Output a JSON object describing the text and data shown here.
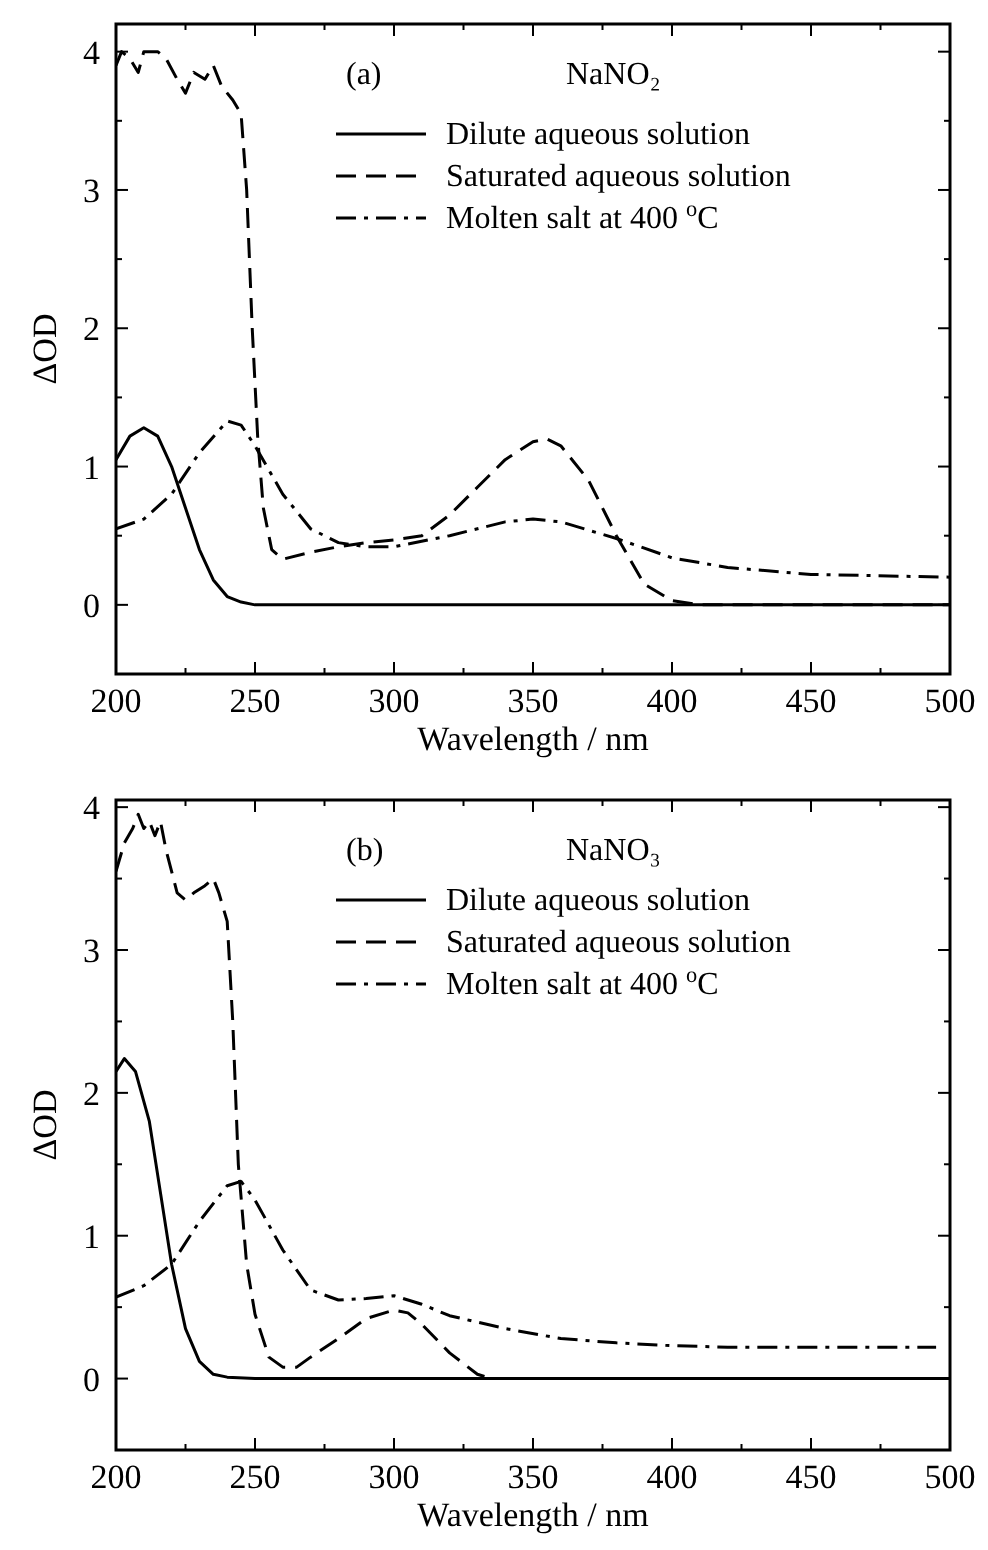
{
  "chart_data": [
    {
      "type": "line",
      "xlabel": "Wavelength / nm",
      "ylabel": "ΔOD",
      "annotations": [
        "(a)",
        "NaNO₂"
      ],
      "xlim": [
        200,
        500
      ],
      "ylim": [
        -0.5,
        4.2
      ],
      "xticks": [
        200,
        {
          "value": 225,
          "label": null
        },
        250,
        {
          "value": 275,
          "label": null
        },
        300,
        {
          "value": 325,
          "label": null
        },
        350,
        {
          "value": 375,
          "label": null
        },
        400,
        {
          "value": 425,
          "label": null
        },
        450,
        {
          "value": 475,
          "label": null
        },
        500
      ],
      "yticks": [
        {
          "value": -0.5,
          "label": null
        },
        0,
        {
          "value": 0.5,
          "label": null
        },
        1,
        {
          "value": 1.5,
          "label": null
        },
        2,
        {
          "value": 2.5,
          "label": null
        },
        3,
        {
          "value": 3.5,
          "label": null
        },
        4
      ],
      "legend": "top right",
      "grid": false,
      "series": [
        {
          "name": "Dilute aqueous solution",
          "color": "#000000",
          "line_style": "solid",
          "x": [
            200,
            205,
            210,
            215,
            220,
            225,
            230,
            235,
            240,
            245,
            250,
            500
          ],
          "values": [
            1.05,
            1.22,
            1.28,
            1.22,
            1.0,
            0.7,
            0.4,
            0.18,
            0.06,
            0.02,
            0,
            0
          ]
        },
        {
          "name": "Saturated aqueous solution",
          "color": "#000000",
          "line_style": "dashed",
          "x": [
            200,
            202,
            205,
            208,
            210,
            215,
            218,
            222,
            225,
            228,
            232,
            235,
            238,
            242,
            245,
            247,
            249,
            251,
            253,
            256,
            260,
            270,
            280,
            290,
            300,
            310,
            320,
            330,
            340,
            350,
            355,
            360,
            370,
            380,
            390,
            400,
            410,
            500
          ],
          "values": [
            3.9,
            4.0,
            3.95,
            3.85,
            4.0,
            4.0,
            3.95,
            3.8,
            3.7,
            3.85,
            3.8,
            3.9,
            3.75,
            3.65,
            3.55,
            3.0,
            2.0,
            1.2,
            0.7,
            0.4,
            0.33,
            0.38,
            0.42,
            0.45,
            0.47,
            0.5,
            0.65,
            0.85,
            1.05,
            1.18,
            1.2,
            1.15,
            0.9,
            0.5,
            0.15,
            0.03,
            0,
            0
          ]
        },
        {
          "name": "Molten salt at 400 $^{o}$C",
          "color": "#000000",
          "line_style": "dashdot",
          "x": [
            200,
            210,
            220,
            230,
            240,
            245,
            250,
            260,
            270,
            280,
            290,
            300,
            320,
            340,
            350,
            360,
            380,
            400,
            420,
            450,
            500
          ],
          "values": [
            0.55,
            0.62,
            0.8,
            1.1,
            1.33,
            1.3,
            1.15,
            0.8,
            0.55,
            0.45,
            0.42,
            0.42,
            0.5,
            0.6,
            0.62,
            0.6,
            0.48,
            0.34,
            0.27,
            0.22,
            0.2
          ]
        }
      ]
    },
    {
      "type": "line",
      "xlabel": "Wavelength / nm",
      "ylabel": "ΔOD",
      "annotations": [
        "(b)",
        "NaNO₃"
      ],
      "xlim": [
        200,
        500
      ],
      "ylim": [
        -0.5,
        4.05
      ],
      "xticks": [
        200,
        {
          "value": 225,
          "label": null
        },
        250,
        {
          "value": 275,
          "label": null
        },
        300,
        {
          "value": 325,
          "label": null
        },
        350,
        {
          "value": 375,
          "label": null
        },
        400,
        {
          "value": 425,
          "label": null
        },
        450,
        {
          "value": 475,
          "label": null
        },
        500
      ],
      "yticks": [
        {
          "value": -0.5,
          "label": null
        },
        0,
        {
          "value": 0.5,
          "label": null
        },
        1,
        {
          "value": 1.5,
          "label": null
        },
        2,
        {
          "value": 2.5,
          "label": null
        },
        3,
        {
          "value": 3.5,
          "label": null
        },
        4
      ],
      "legend": "top right",
      "grid": false,
      "series": [
        {
          "name": "Dilute aqueous solution",
          "color": "#000000",
          "line_style": "solid",
          "x": [
            200,
            203,
            207,
            212,
            216,
            220,
            225,
            230,
            235,
            240,
            250,
            500
          ],
          "values": [
            2.15,
            2.24,
            2.15,
            1.8,
            1.3,
            0.8,
            0.35,
            0.12,
            0.03,
            0.01,
            0,
            0
          ]
        },
        {
          "name": "Saturated aqueous solution",
          "color": "#000000",
          "line_style": "dashed",
          "x": [
            200,
            203,
            206,
            208,
            210,
            212,
            214,
            216,
            218,
            220,
            222,
            225,
            228,
            232,
            235,
            237,
            240,
            242,
            244,
            247,
            250,
            255,
            260,
            265,
            270,
            280,
            290,
            300,
            305,
            310,
            320,
            330,
            335,
            500
          ],
          "values": [
            3.55,
            3.75,
            3.85,
            3.95,
            3.85,
            3.9,
            3.8,
            3.9,
            3.7,
            3.55,
            3.4,
            3.35,
            3.4,
            3.45,
            3.5,
            3.4,
            3.2,
            2.5,
            1.5,
            0.8,
            0.45,
            0.15,
            0.08,
            0.08,
            0.15,
            0.28,
            0.42,
            0.48,
            0.46,
            0.38,
            0.18,
            0.03,
            0,
            0
          ]
        },
        {
          "name": "Molten salt at 400 $^{o}$C",
          "color": "#000000",
          "line_style": "dashdot",
          "x": [
            200,
            210,
            220,
            230,
            240,
            245,
            250,
            260,
            270,
            280,
            290,
            300,
            310,
            320,
            340,
            360,
            380,
            400,
            420,
            450,
            495
          ],
          "values": [
            0.57,
            0.65,
            0.8,
            1.1,
            1.35,
            1.38,
            1.25,
            0.9,
            0.62,
            0.55,
            0.56,
            0.58,
            0.52,
            0.44,
            0.35,
            0.28,
            0.25,
            0.23,
            0.22,
            0.22,
            0.22
          ]
        }
      ]
    }
  ]
}
